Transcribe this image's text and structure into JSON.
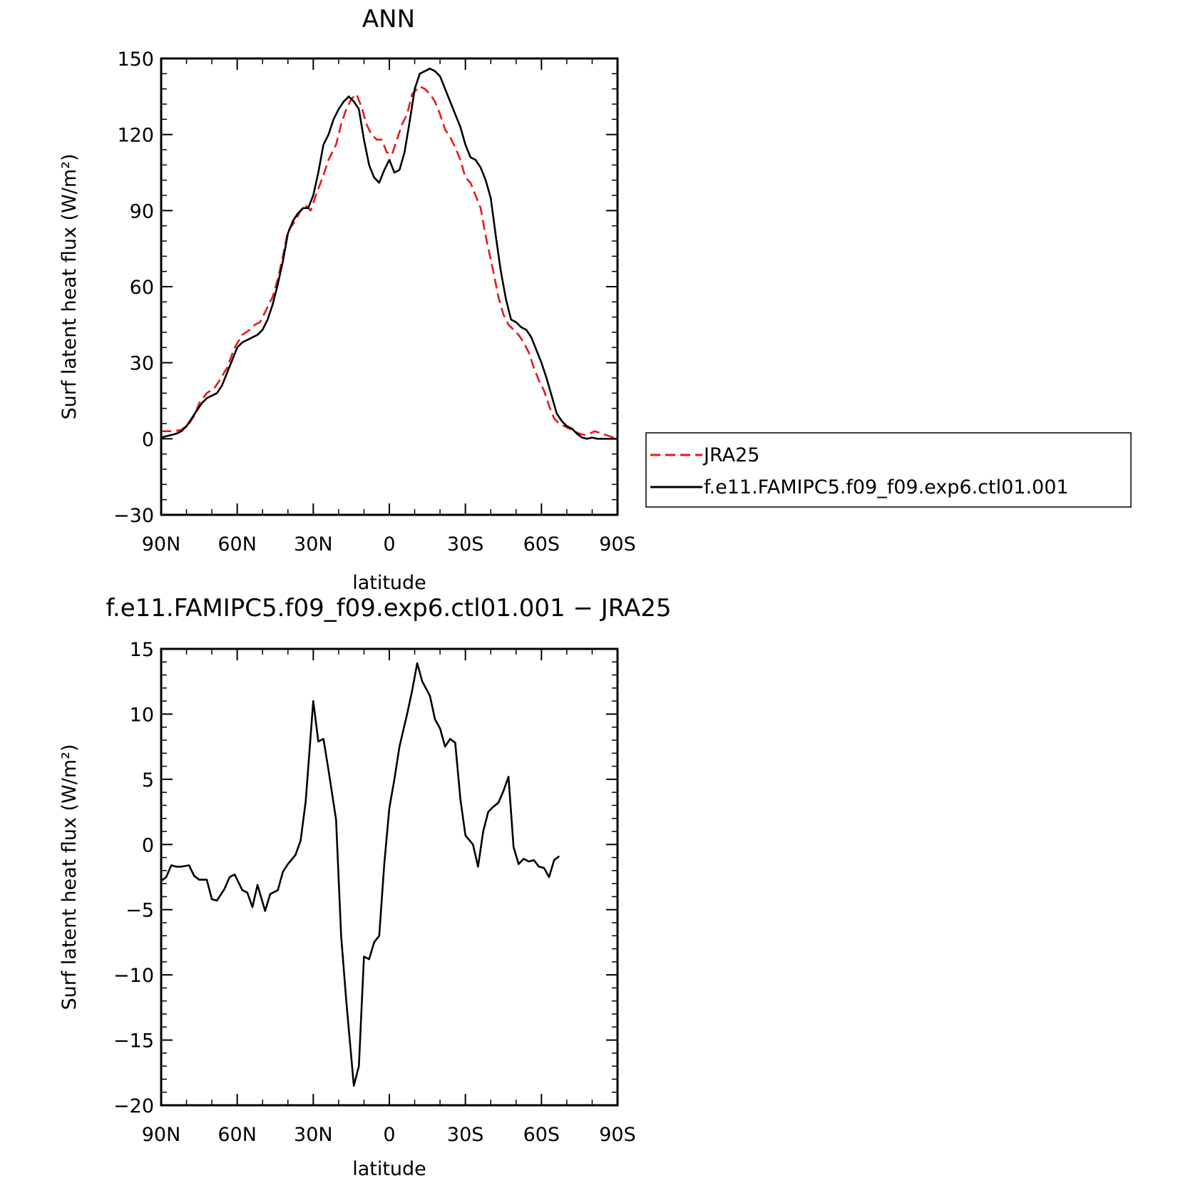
{
  "chart_data": [
    {
      "type": "line",
      "title": "ANN",
      "xlabel": "latitude",
      "ylabel": "Surf latent heat flux (W/m²)",
      "xlim": [
        90,
        -90
      ],
      "ylim": [
        -30,
        150
      ],
      "x_ticks": [
        90,
        60,
        30,
        0,
        -30,
        -60,
        -90
      ],
      "x_tick_labels": [
        "90N",
        "60N",
        "30N",
        "0",
        "30S",
        "60S",
        "90S"
      ],
      "y_ticks": [
        -30,
        0,
        30,
        60,
        90,
        120,
        150
      ],
      "y_tick_labels": [
        "−30",
        "0",
        "30",
        "60",
        "90",
        "120",
        "150"
      ],
      "legend": {
        "placement": "right",
        "entries": [
          "JRA25",
          "f.e11.FAMIPC5.f09_f09.exp6.ctl01.001"
        ]
      },
      "series": [
        {
          "name": "JRA25",
          "color": "#e31a1c",
          "dash": "dashed",
          "points": [
            [
              90,
              3
            ],
            [
              85,
              3
            ],
            [
              82,
              3.5
            ],
            [
              79,
              6
            ],
            [
              77,
              9
            ],
            [
              75,
              14
            ],
            [
              72,
              18
            ],
            [
              69,
              20
            ],
            [
              67,
              23
            ],
            [
              64,
              28
            ],
            [
              61,
              36
            ],
            [
              58,
              41
            ],
            [
              55,
              43
            ],
            [
              53,
              45
            ],
            [
              51,
              46
            ],
            [
              49,
              50
            ],
            [
              46,
              56
            ],
            [
              44,
              63
            ],
            [
              42,
              72
            ],
            [
              40,
              82
            ],
            [
              37,
              86
            ],
            [
              35,
              90
            ],
            [
              33,
              92
            ],
            [
              31,
              90
            ],
            [
              29,
              96
            ],
            [
              26,
              104
            ],
            [
              24,
              110
            ],
            [
              21,
              116
            ],
            [
              19,
              124
            ],
            [
              17,
              130
            ],
            [
              15,
              134
            ],
            [
              13,
              136
            ],
            [
              11,
              131
            ],
            [
              9,
              124
            ],
            [
              7,
              120
            ],
            [
              5,
              118
            ],
            [
              3,
              118
            ],
            [
              1,
              113
            ],
            [
              -1,
              112
            ],
            [
              -3,
              118
            ],
            [
              -5,
              124
            ],
            [
              -7,
              128
            ],
            [
              -9,
              136
            ],
            [
              -12,
              139
            ],
            [
              -14,
              138
            ],
            [
              -16,
              136
            ],
            [
              -18,
              133
            ],
            [
              -20,
              128
            ],
            [
              -22,
              122
            ],
            [
              -24,
              119
            ],
            [
              -26,
              115
            ],
            [
              -28,
              110
            ],
            [
              -30,
              103
            ],
            [
              -32,
              101
            ],
            [
              -34,
              96
            ],
            [
              -36,
              91
            ],
            [
              -38,
              80
            ],
            [
              -41,
              66
            ],
            [
              -43,
              56
            ],
            [
              -45,
              49
            ],
            [
              -47,
              45
            ],
            [
              -49,
              43
            ],
            [
              -51,
              41
            ],
            [
              -53,
              38
            ],
            [
              -55,
              34
            ],
            [
              -57,
              28
            ],
            [
              -59,
              23
            ],
            [
              -61,
              19
            ],
            [
              -63,
              13
            ],
            [
              -65,
              8
            ],
            [
              -67,
              6
            ],
            [
              -69,
              5
            ],
            [
              -71,
              4
            ],
            [
              -73,
              3
            ],
            [
              -75,
              2
            ],
            [
              -77,
              1.5
            ],
            [
              -79,
              2
            ],
            [
              -81,
              3
            ],
            [
              -84,
              2
            ],
            [
              -87,
              1
            ],
            [
              -90,
              0
            ]
          ]
        },
        {
          "name": "f.e11.FAMIPC5.f09_f09.exp6.ctl01.001",
          "color": "#000000",
          "dash": "solid",
          "points": [
            [
              90,
              0.5
            ],
            [
              88,
              1
            ],
            [
              86,
              1.5
            ],
            [
              84,
              2
            ],
            [
              82,
              3
            ],
            [
              80,
              5
            ],
            [
              78,
              8
            ],
            [
              76,
              11
            ],
            [
              74,
              14
            ],
            [
              72,
              16
            ],
            [
              70,
              17
            ],
            [
              68,
              18
            ],
            [
              66,
              21
            ],
            [
              64,
              26
            ],
            [
              62,
              31
            ],
            [
              60,
              36
            ],
            [
              58,
              38
            ],
            [
              56,
              39
            ],
            [
              54,
              40
            ],
            [
              52,
              41
            ],
            [
              50,
              43
            ],
            [
              48,
              47
            ],
            [
              46,
              53
            ],
            [
              44,
              61
            ],
            [
              42,
              70
            ],
            [
              40,
              81
            ],
            [
              38,
              86
            ],
            [
              36,
              89
            ],
            [
              34,
              91
            ],
            [
              32,
              91
            ],
            [
              30,
              96
            ],
            [
              28,
              105
            ],
            [
              26,
              116
            ],
            [
              24,
              120
            ],
            [
              22,
              126
            ],
            [
              20,
              130
            ],
            [
              18,
              133
            ],
            [
              16,
              135
            ],
            [
              14,
              133
            ],
            [
              12,
              130
            ],
            [
              10,
              118
            ],
            [
              8,
              108
            ],
            [
              6,
              103
            ],
            [
              4,
              101
            ],
            [
              2,
              106
            ],
            [
              0,
              110
            ],
            [
              -2,
              105
            ],
            [
              -4,
              106
            ],
            [
              -6,
              113
            ],
            [
              -8,
              125
            ],
            [
              -10,
              138
            ],
            [
              -12,
              144
            ],
            [
              -14,
              145
            ],
            [
              -16,
              146
            ],
            [
              -18,
              145
            ],
            [
              -20,
              143
            ],
            [
              -22,
              138
            ],
            [
              -24,
              133
            ],
            [
              -26,
              128
            ],
            [
              -28,
              123
            ],
            [
              -30,
              116
            ],
            [
              -32,
              111
            ],
            [
              -34,
              110
            ],
            [
              -36,
              107
            ],
            [
              -38,
              102
            ],
            [
              -40,
              95
            ],
            [
              -42,
              80
            ],
            [
              -44,
              66
            ],
            [
              -46,
              55
            ],
            [
              -48,
              47
            ],
            [
              -50,
              46
            ],
            [
              -52,
              44
            ],
            [
              -54,
              43
            ],
            [
              -56,
              40
            ],
            [
              -58,
              35
            ],
            [
              -60,
              30
            ],
            [
              -62,
              24
            ],
            [
              -64,
              17
            ],
            [
              -66,
              10
            ],
            [
              -68,
              7
            ],
            [
              -70,
              5
            ],
            [
              -72,
              4
            ],
            [
              -74,
              2
            ],
            [
              -76,
              0.5
            ],
            [
              -78,
              0
            ],
            [
              -80,
              0.5
            ],
            [
              -82,
              0
            ],
            [
              -84,
              0
            ],
            [
              -86,
              0
            ],
            [
              -88,
              0
            ],
            [
              -90,
              0
            ]
          ]
        }
      ]
    },
    {
      "type": "line",
      "title": "f.e11.FAMIPC5.f09_f09.exp6.ctl01.001 − JRA25",
      "xlabel": "latitude",
      "ylabel": "Surf latent heat flux (W/m²)",
      "xlim": [
        90,
        -90
      ],
      "ylim": [
        -20,
        15
      ],
      "x_ticks": [
        90,
        60,
        30,
        0,
        -30,
        -60,
        -90
      ],
      "x_tick_labels": [
        "90N",
        "60N",
        "30N",
        "0",
        "30S",
        "60S",
        "90S"
      ],
      "y_ticks": [
        -20,
        -15,
        -10,
        -5,
        0,
        5,
        10,
        15
      ],
      "y_tick_labels": [
        "−20",
        "−15",
        "−10",
        "−5",
        "0",
        "5",
        "10",
        "15"
      ],
      "series": [
        {
          "color": "#000000",
          "dash": "solid",
          "points": [
            [
              90,
              -2.8
            ],
            [
              88,
              -2.5
            ],
            [
              86,
              -1.6
            ],
            [
              84,
              -1.7
            ],
            [
              82,
              -1.7
            ],
            [
              79,
              -1.6
            ],
            [
              77,
              -2.4
            ],
            [
              75,
              -2.7
            ],
            [
              72,
              -2.7
            ],
            [
              70,
              -4.2
            ],
            [
              68,
              -4.3
            ],
            [
              65,
              -3.4
            ],
            [
              63,
              -2.5
            ],
            [
              61,
              -2.3
            ],
            [
              58,
              -3.5
            ],
            [
              56,
              -3.7
            ],
            [
              54,
              -4.8
            ],
            [
              52,
              -3.1
            ],
            [
              49,
              -5.1
            ],
            [
              47,
              -3.8
            ],
            [
              44,
              -3.5
            ],
            [
              42,
              -2.1
            ],
            [
              40,
              -1.5
            ],
            [
              37,
              -0.8
            ],
            [
              35,
              0.3
            ],
            [
              33,
              3.3
            ],
            [
              30,
              11
            ],
            [
              28,
              7.9
            ],
            [
              26,
              8.1
            ],
            [
              24,
              5.7
            ],
            [
              21,
              1.9
            ],
            [
              19,
              -7
            ],
            [
              17,
              -12
            ],
            [
              14,
              -18.5
            ],
            [
              12,
              -17
            ],
            [
              10,
              -8.6
            ],
            [
              8,
              -8.8
            ],
            [
              6,
              -7.5
            ],
            [
              4,
              -7
            ],
            [
              2,
              -1.5
            ],
            [
              0,
              2.8
            ],
            [
              -2,
              5
            ],
            [
              -4,
              7.5
            ],
            [
              -7,
              10
            ],
            [
              -9,
              11.8
            ],
            [
              -11,
              13.9
            ],
            [
              -13,
              12.5
            ],
            [
              -16,
              11.4
            ],
            [
              -18,
              9.6
            ],
            [
              -20,
              8.9
            ],
            [
              -22,
              7.5
            ],
            [
              -24,
              8.1
            ],
            [
              -26,
              7.8
            ],
            [
              -28,
              3.5
            ],
            [
              -30,
              0.7
            ],
            [
              -33,
              0
            ],
            [
              -35,
              -1.7
            ],
            [
              -37,
              1
            ],
            [
              -39,
              2.5
            ],
            [
              -41,
              2.9
            ],
            [
              -43,
              3.2
            ],
            [
              -45,
              4.1
            ],
            [
              -47,
              5.2
            ],
            [
              -49,
              -0.2
            ],
            [
              -51,
              -1.5
            ],
            [
              -53,
              -1.1
            ],
            [
              -55,
              -1.3
            ],
            [
              -57,
              -1.2
            ],
            [
              -59,
              -1.7
            ],
            [
              -61,
              -1.8
            ],
            [
              -63,
              -2.5
            ],
            [
              -65,
              -1.2
            ],
            [
              -67,
              -0.9
            ]
          ]
        }
      ]
    }
  ]
}
